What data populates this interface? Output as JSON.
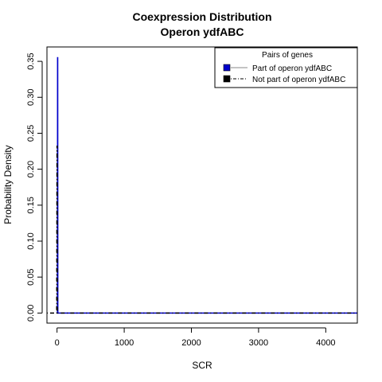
{
  "chart_data": {
    "type": "line",
    "title": "Coexpression Distribution",
    "subtitle": "Operon ydfABC",
    "xlabel": "SCR",
    "ylabel": "Probability Density",
    "xlim": [
      -150,
      4470
    ],
    "ylim": [
      -0.014,
      0.37
    ],
    "x_ticks": [
      0,
      1000,
      2000,
      3000,
      4000
    ],
    "x_tick_labels": [
      "0",
      "1000",
      "2000",
      "3000",
      "4000"
    ],
    "y_ticks": [
      0.0,
      0.05,
      0.1,
      0.15,
      0.2,
      0.25,
      0.3,
      0.35
    ],
    "y_tick_labels": [
      "0.00",
      "0.05",
      "0.10",
      "0.15",
      "0.20",
      "0.25",
      "0.30",
      "0.35"
    ],
    "grid": false,
    "legend": {
      "title": "Pairs of genes",
      "position": "top-right"
    },
    "series": [
      {
        "name": "Part of operon ydfABC",
        "color": "#0000cc",
        "style": "solid",
        "x": [
          0,
          6,
          8,
          10,
          12,
          14,
          16,
          30,
          4470
        ],
        "y": [
          0.0,
          0.0,
          0.355,
          0.355,
          0.0,
          0.0,
          0.0,
          0.0,
          0.0
        ]
      },
      {
        "name": "Not part of operon ydfABC",
        "color": "#000000",
        "style": "dashdot",
        "x": [
          -150,
          -5,
          0,
          2,
          4,
          6,
          10,
          20,
          4470
        ],
        "y": [
          0.0,
          0.0,
          0.232,
          0.232,
          0.0,
          0.0,
          0.0,
          0.0,
          0.0
        ]
      }
    ]
  }
}
